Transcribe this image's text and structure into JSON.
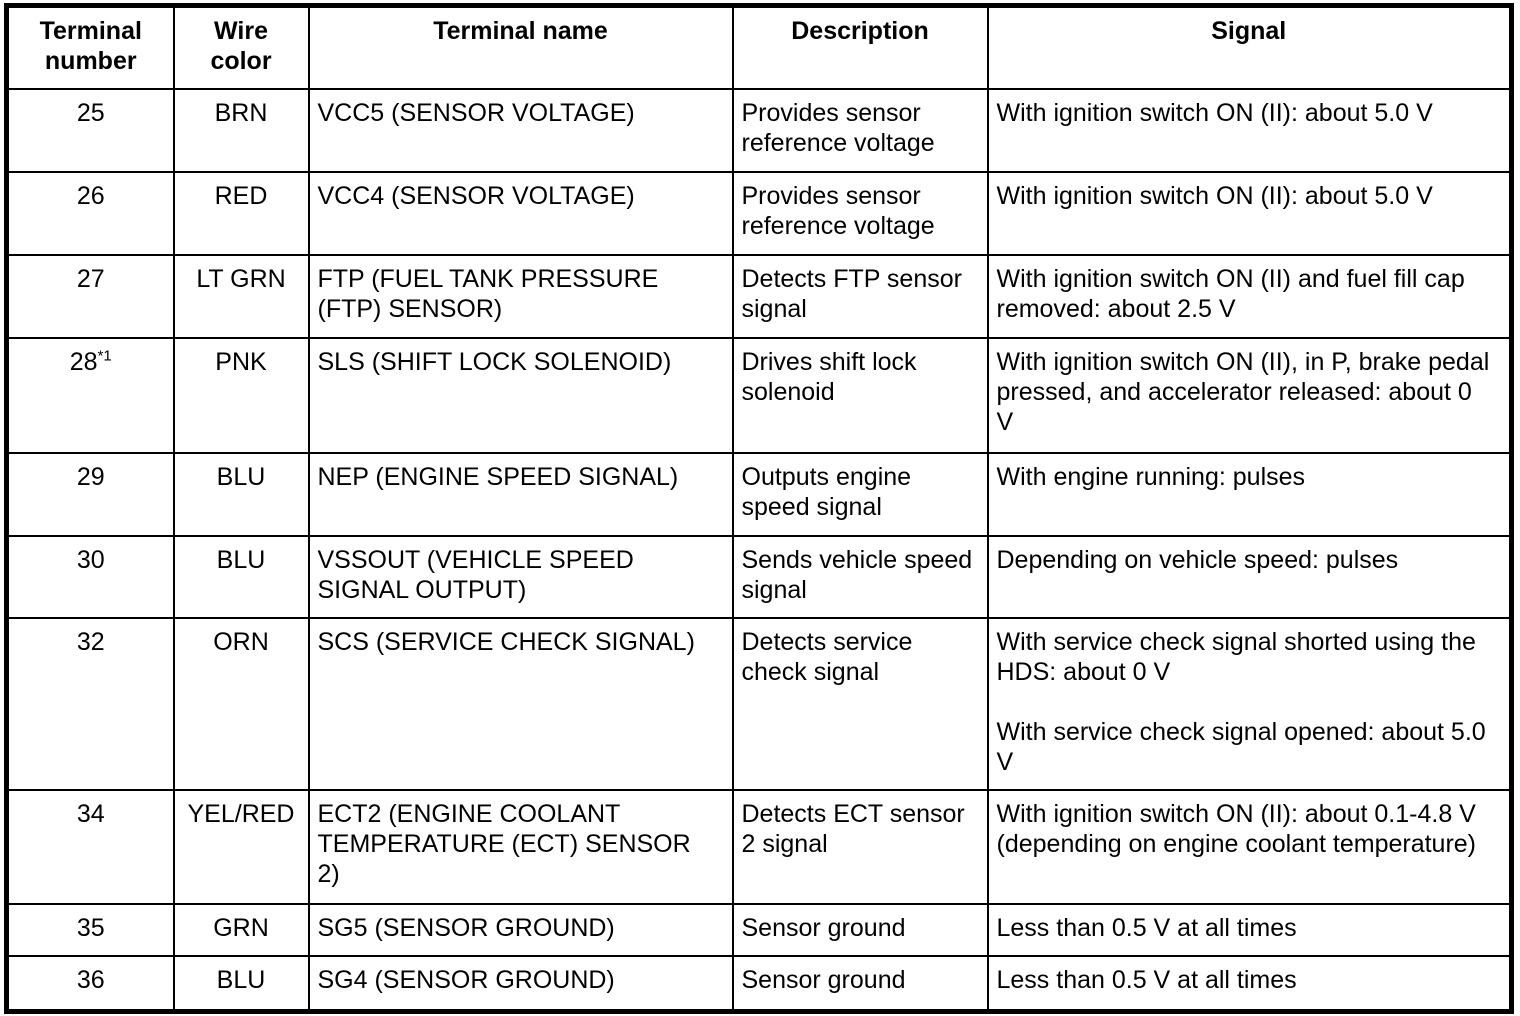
{
  "table": {
    "columns": [
      {
        "key": "terminal_number",
        "label": "Terminal number"
      },
      {
        "key": "wire_color",
        "label": "Wire color"
      },
      {
        "key": "terminal_name",
        "label": "Terminal name"
      },
      {
        "key": "description",
        "label": "Description"
      },
      {
        "key": "signal",
        "label": "Signal"
      }
    ],
    "rows": [
      {
        "terminal_number": "25",
        "terminal_number_note": "",
        "wire_color": "BRN",
        "terminal_name": "VCC5 (SENSOR VOLTAGE)",
        "description": "Provides sensor reference voltage",
        "signal_paragraphs": [
          "With ignition switch ON (II): about 5.0 V"
        ]
      },
      {
        "terminal_number": "26",
        "terminal_number_note": "",
        "wire_color": "RED",
        "terminal_name": "VCC4 (SENSOR VOLTAGE)",
        "description": "Provides sensor reference voltage",
        "signal_paragraphs": [
          "With ignition switch ON (II): about 5.0 V"
        ]
      },
      {
        "terminal_number": "27",
        "terminal_number_note": "",
        "wire_color": "LT GRN",
        "terminal_name": "FTP (FUEL TANK PRESSURE (FTP) SENSOR)",
        "description": "Detects FTP sensor signal",
        "signal_paragraphs": [
          "With ignition switch ON (II) and fuel fill cap removed: about 2.5 V"
        ]
      },
      {
        "terminal_number": "28",
        "terminal_number_note": "*1",
        "wire_color": "PNK",
        "terminal_name": "SLS (SHIFT LOCK SOLENOID)",
        "description": "Drives shift lock solenoid",
        "signal_paragraphs": [
          "With ignition switch ON (II), in P, brake pedal pressed, and accelerator released: about 0 V"
        ]
      },
      {
        "terminal_number": "29",
        "terminal_number_note": "",
        "wire_color": "BLU",
        "terminal_name": "NEP (ENGINE SPEED SIGNAL)",
        "description": "Outputs engine speed signal",
        "signal_paragraphs": [
          "With engine running: pulses"
        ]
      },
      {
        "terminal_number": "30",
        "terminal_number_note": "",
        "wire_color": "BLU",
        "terminal_name": "VSSOUT (VEHICLE SPEED SIGNAL OUTPUT)",
        "description": "Sends vehicle speed signal",
        "signal_paragraphs": [
          "Depending on vehicle speed: pulses"
        ]
      },
      {
        "terminal_number": "32",
        "terminal_number_note": "",
        "wire_color": "ORN",
        "terminal_name": "SCS (SERVICE CHECK SIGNAL)",
        "description": "Detects service check signal",
        "signal_paragraphs": [
          "With service check signal shorted using the HDS: about 0 V",
          "With service check signal opened: about 5.0 V"
        ]
      },
      {
        "terminal_number": "34",
        "terminal_number_note": "",
        "wire_color": "YEL/RED",
        "terminal_name": "ECT2 (ENGINE COOLANT TEMPERATURE (ECT) SENSOR 2)",
        "description": "Detects ECT sensor 2 signal",
        "signal_paragraphs": [
          "With ignition switch ON (II): about 0.1-4.8 V (depending on engine coolant temperature)"
        ]
      },
      {
        "terminal_number": "35",
        "terminal_number_note": "",
        "wire_color": "GRN",
        "terminal_name": "SG5 (SENSOR GROUND)",
        "description": "Sensor ground",
        "signal_paragraphs": [
          "Less than 0.5 V at all times"
        ]
      },
      {
        "terminal_number": "36",
        "terminal_number_note": "",
        "wire_color": "BLU",
        "terminal_name": "SG4 (SENSOR GROUND)",
        "description": "Sensor ground",
        "signal_paragraphs": [
          "Less than 0.5 V at all times"
        ]
      }
    ]
  }
}
